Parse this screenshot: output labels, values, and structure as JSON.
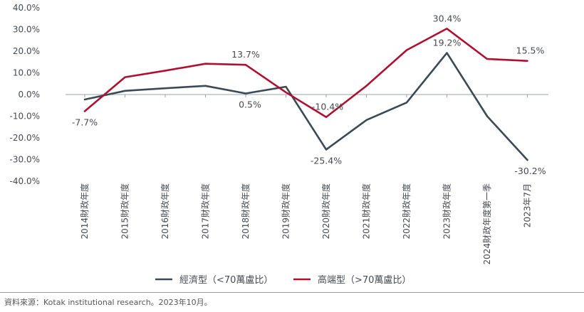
{
  "chart_data": {
    "type": "line",
    "categories": [
      "2014財政年度",
      "2015財政年度",
      "2016財政年度",
      "2017財政年度",
      "2018財政年度",
      "2019財政年度",
      "2020財政年度",
      "2021財政年度",
      "2022財政年度",
      "2023財政年度",
      "2024財政年度第一季",
      "2023年7月"
    ],
    "ylim": [
      -40,
      40
    ],
    "yticks": [
      "40.0%",
      "30.0%",
      "20.0%",
      "10.0%",
      "0.0%",
      "-10.0%",
      "-20.0%",
      "-30.0%",
      "-40.0%"
    ],
    "ytick_values": [
      40,
      30,
      20,
      10,
      0,
      -10,
      -20,
      -30,
      -40
    ],
    "series": [
      {
        "name": "經濟型（<70萬盧比）",
        "color": "#3a4a57",
        "values": [
          -2.3,
          1.7,
          2.9,
          4.0,
          0.5,
          3.6,
          -25.4,
          -11.8,
          -3.7,
          19.2,
          -10.0,
          -30.2
        ]
      },
      {
        "name": "高端型（>70萬盧比）",
        "color": "#b0102f",
        "values": [
          -7.7,
          8.0,
          11.0,
          14.2,
          13.7,
          1.0,
          -10.4,
          4.0,
          20.5,
          30.4,
          16.4,
          15.5
        ]
      }
    ],
    "data_labels": [
      {
        "series": 1,
        "index": 0,
        "text": "-7.7%",
        "pos": "below"
      },
      {
        "series": 1,
        "index": 4,
        "text": "13.7%",
        "pos": "above"
      },
      {
        "series": 0,
        "index": 4,
        "text": "0.5%",
        "pos": "below"
      },
      {
        "series": 1,
        "index": 6,
        "text": "-10.4%",
        "pos": "above"
      },
      {
        "series": 0,
        "index": 6,
        "text": "-25.4%",
        "pos": "below"
      },
      {
        "series": 1,
        "index": 9,
        "text": "30.4%",
        "pos": "above"
      },
      {
        "series": 0,
        "index": 9,
        "text": "19.2%",
        "pos": "above"
      },
      {
        "series": 1,
        "index": 11,
        "text": "15.5%",
        "pos": "above"
      },
      {
        "series": 0,
        "index": 11,
        "text": "-30.2%",
        "pos": "below"
      }
    ],
    "legend_position": "bottom"
  },
  "source": "資料來源：Kotak institutional research。2023年10月。"
}
